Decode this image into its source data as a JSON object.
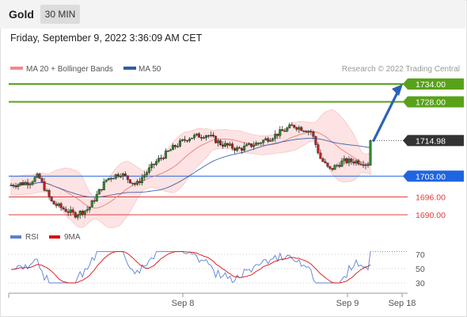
{
  "header": {
    "title": "Gold",
    "timeframe": "30 MIN",
    "timestamp": "Friday, September 9, 2022 3:36:09 AM CET"
  },
  "legend": {
    "items": [
      {
        "label": "MA 20 + Bollinger Bands",
        "color": "#f08a8a"
      },
      {
        "label": "MA 50",
        "color": "#2e5e9e"
      }
    ],
    "credit": "Research © 2022 Trading Central"
  },
  "rsi_legend": {
    "items": [
      {
        "label": "RSI",
        "color": "#5b7fd6"
      },
      {
        "label": "9MA",
        "color": "#dd1111"
      }
    ]
  },
  "chart_data": [
    {
      "type": "candlestick",
      "ylim": [
        1686,
        1745
      ],
      "levels": [
        {
          "value": 1734.0,
          "label": "1734.00",
          "role": "target",
          "color": "#58a21a"
        },
        {
          "value": 1728.0,
          "label": "1728.00",
          "role": "target",
          "color": "#58a21a"
        },
        {
          "value": 1714.98,
          "label": "1714.98",
          "role": "current",
          "color": "#333333"
        },
        {
          "value": 1703.0,
          "label": "1703.00",
          "role": "pivot",
          "color": "#1f64e0"
        },
        {
          "value": 1696.0,
          "label": "1696.00",
          "role": "support",
          "color": "#e23b3b"
        },
        {
          "value": 1690.0,
          "label": "1690.00",
          "role": "support",
          "color": "#e23b3b"
        }
      ],
      "arrow": {
        "from": 1714.98,
        "to": 1734.0,
        "direction": "up",
        "color": "#2a62b8"
      },
      "x_ticks": [
        "Sep 8",
        "Sep 9",
        "Sep 18"
      ],
      "series": [
        {
          "name": "MA 20 + Bollinger Bands",
          "color": "#f08a8a"
        },
        {
          "name": "MA 50",
          "color": "#2e5e9e"
        }
      ]
    },
    {
      "type": "line",
      "ylim": [
        20,
        80
      ],
      "y_ticks": [
        70,
        50,
        30
      ],
      "series": [
        {
          "name": "RSI",
          "color": "#5b7fd6"
        },
        {
          "name": "9MA",
          "color": "#dd1111"
        }
      ]
    }
  ]
}
